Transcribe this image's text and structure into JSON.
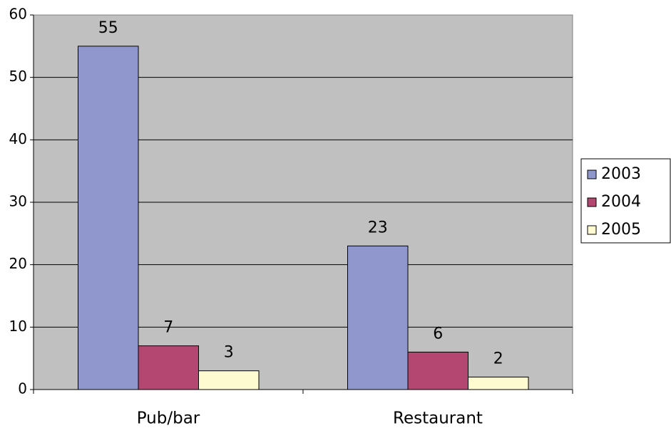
{
  "chart_data": {
    "type": "bar",
    "categories": [
      "Pub/bar",
      "Restaurant"
    ],
    "series": [
      {
        "name": "2003",
        "color": "#8f97cc",
        "values": [
          55,
          23
        ]
      },
      {
        "name": "2004",
        "color": "#b44772",
        "values": [
          7,
          6
        ]
      },
      {
        "name": "2005",
        "color": "#fffbd0",
        "values": [
          3,
          2
        ]
      }
    ],
    "ylim": [
      0,
      60
    ],
    "yticks": [
      0,
      10,
      20,
      30,
      40,
      50,
      60
    ],
    "grid": true,
    "legend": "right"
  }
}
